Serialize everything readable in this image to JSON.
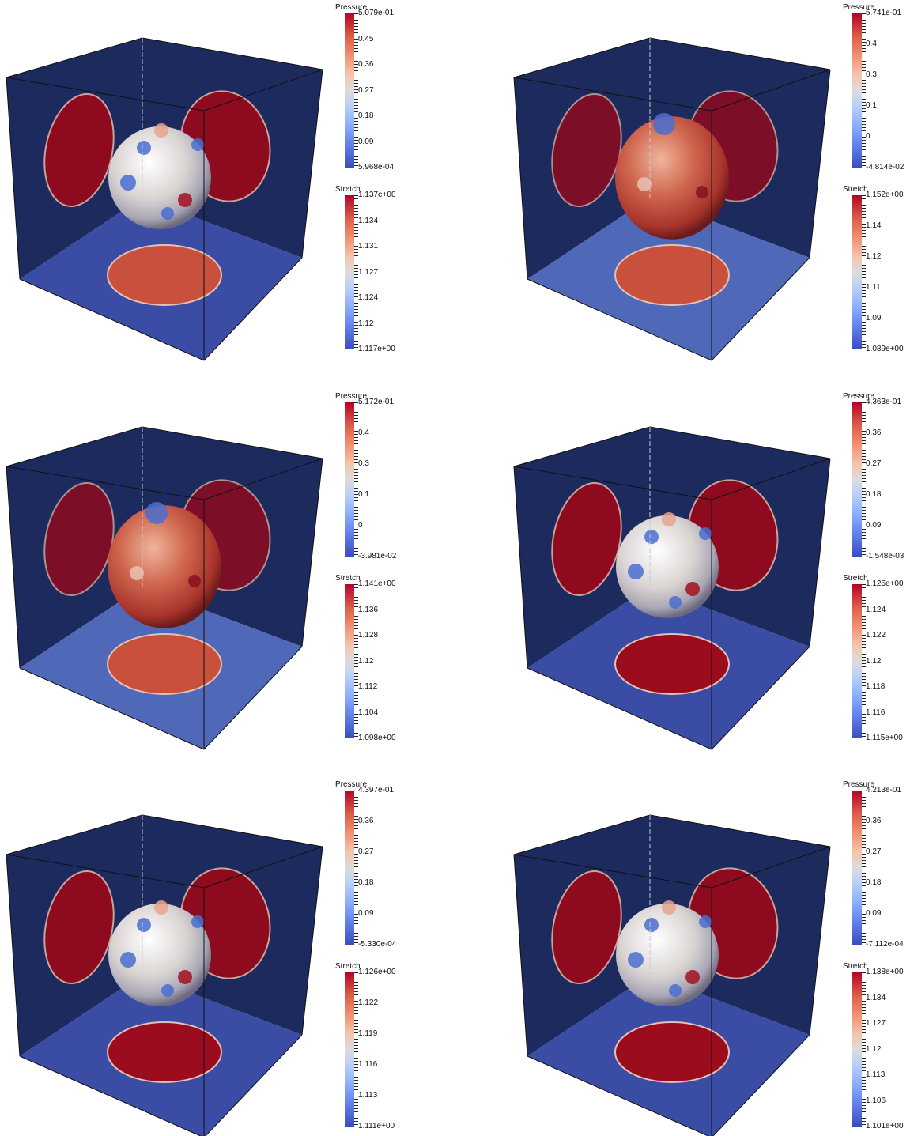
{
  "panels": [
    {
      "pressure": {
        "title": "Pressure",
        "labels": [
          "5.079e-01",
          "0.45",
          "0.36",
          "0.27",
          "0.18",
          "0.09",
          "5.968e-04"
        ]
      },
      "stretch": {
        "title": "Stretch",
        "labels": [
          "1.137e+00",
          "1.134",
          "1.131",
          "1.127",
          "1.124",
          "1.12",
          "1.117e+00"
        ]
      }
    },
    {
      "pressure": {
        "title": "Pressure",
        "labels": [
          "5.741e-01",
          "0.4",
          "0.3",
          "0.1",
          "0",
          "-4.814e-02"
        ]
      },
      "stretch": {
        "title": "Stretch",
        "labels": [
          "1.152e+00",
          "1.14",
          "1.12",
          "1.11",
          "1.09",
          "1.089e+00"
        ]
      }
    },
    {
      "pressure": {
        "title": "Pressure",
        "labels": [
          "5.172e-01",
          "0.4",
          "0.3",
          "0.1",
          "0",
          "-3.981e-02"
        ]
      },
      "stretch": {
        "title": "Stretch",
        "labels": [
          "1.141e+00",
          "1.136",
          "1.128",
          "1.12",
          "1.112",
          "1.104",
          "1.098e+00"
        ]
      }
    },
    {
      "pressure": {
        "title": "Pressure",
        "labels": [
          "4.363e-01",
          "0.36",
          "0.27",
          "0.18",
          "0.09",
          "-1.548e-03"
        ]
      },
      "stretch": {
        "title": "Stretch",
        "labels": [
          "1.125e+00",
          "1.124",
          "1.122",
          "1.12",
          "1.118",
          "1.116",
          "1.115e+00"
        ]
      }
    },
    {
      "pressure": {
        "title": "Pressure",
        "labels": [
          "4.397e-01",
          "0.36",
          "0.27",
          "0.18",
          "0.09",
          "-5.330e-04"
        ]
      },
      "stretch": {
        "title": "Stretch",
        "labels": [
          "1.126e+00",
          "1.122",
          "1.119",
          "1.116",
          "1.113",
          "1.111e+00"
        ]
      }
    },
    {
      "pressure": {
        "title": "Pressure",
        "labels": [
          "4.213e-01",
          "0.36",
          "0.27",
          "0.18",
          "0.09",
          "-7.112e-04"
        ]
      },
      "stretch": {
        "title": "Stretch",
        "labels": [
          "1.138e+00",
          "1.134",
          "1.127",
          "1.12",
          "1.113",
          "1.106",
          "1.101e+00"
        ]
      }
    }
  ],
  "colors": {
    "box_dark": "#1c2a5e",
    "box_floor": "#3a4ca4",
    "disc_red": "#8e0a1e",
    "sphere_light": "#d9d4d2",
    "sphere_red": "#c44a3c",
    "spot_blue": "#4a6fd0"
  }
}
